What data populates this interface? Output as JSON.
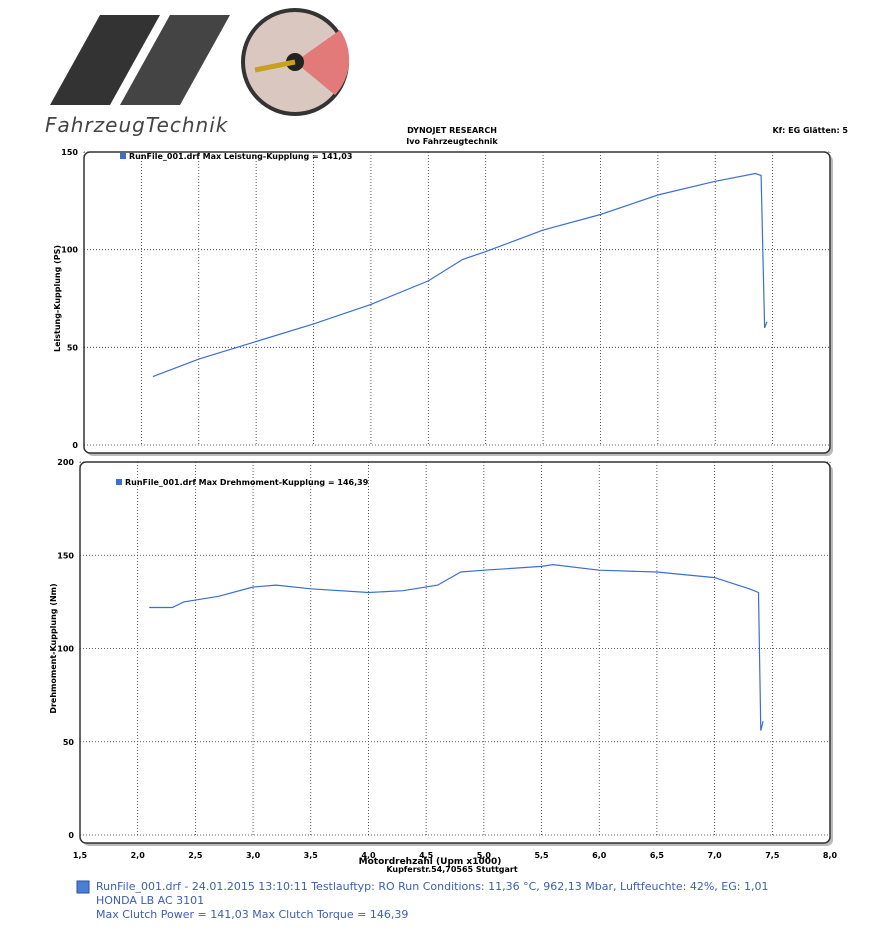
{
  "header": {
    "logo_text": "FahrzeugTechnik",
    "company": "DYNOJET RESEARCH",
    "shop": "Ivo Fahrzeugtechnik",
    "settings": "Kf: EG  Glätten: 5",
    "address": "Kupferstr.54,70565 Stuttgart"
  },
  "chart_data": [
    {
      "type": "line",
      "y_label": "Leistung-Kupplung (PS)",
      "xlim": [
        1.5,
        8.0
      ],
      "ylim": [
        0,
        150
      ],
      "yticks": [
        0,
        50,
        100,
        150
      ],
      "grid": true,
      "x": [
        2.1,
        2.5,
        3.0,
        3.5,
        4.0,
        4.5,
        4.8,
        5.0,
        5.5,
        6.0,
        6.3,
        6.5,
        7.0,
        7.35,
        7.4,
        7.43,
        7.45
      ],
      "series": [
        {
          "name": "RunFile_001.drf Max Leistung-Kupplung = 141,03",
          "color": "#3a6fd0",
          "values": [
            35,
            44,
            53,
            62,
            72,
            84,
            95,
            99,
            110,
            118,
            124,
            128,
            135,
            139,
            138,
            60,
            63
          ]
        }
      ]
    },
    {
      "type": "line",
      "y_label": "Drehmoment-Kupplung (Nm)",
      "x_label": "Motordrehzahl (Upm x1000)",
      "xlim": [
        1.5,
        8.0
      ],
      "ylim": [
        0,
        200
      ],
      "yticks": [
        0,
        50,
        100,
        150,
        200
      ],
      "grid": true,
      "xticks": [
        {
          "value": 1.5,
          "label": "1,5"
        },
        {
          "value": 2.0,
          "label": "2,0"
        },
        {
          "value": 2.5,
          "label": "2,5"
        },
        {
          "value": 3.0,
          "label": "3,0"
        },
        {
          "value": 3.5,
          "label": "3,5"
        },
        {
          "value": 4.0,
          "label": "4,0"
        },
        {
          "value": 4.5,
          "label": "4,5"
        },
        {
          "value": 5.0,
          "label": "5,0"
        },
        {
          "value": 5.5,
          "label": "5,5"
        },
        {
          "value": 6.0,
          "label": "6,0"
        },
        {
          "value": 6.5,
          "label": "6,5"
        },
        {
          "value": 7.0,
          "label": "7,0"
        },
        {
          "value": 7.5,
          "label": "7,5"
        },
        {
          "value": 8.0,
          "label": "8,0"
        }
      ],
      "x": [
        2.1,
        2.3,
        2.4,
        2.7,
        3.0,
        3.2,
        3.5,
        4.0,
        4.3,
        4.6,
        4.8,
        5.0,
        5.5,
        5.6,
        6.0,
        6.5,
        7.0,
        7.3,
        7.38,
        7.4,
        7.42
      ],
      "series": [
        {
          "name": "RunFile_001.drf Max Drehmoment-Kupplung = 146,39",
          "color": "#3a6fd0",
          "values": [
            122,
            122,
            125,
            128,
            133,
            134,
            132,
            130,
            131,
            134,
            141,
            142,
            144,
            145,
            142,
            141,
            138,
            132,
            130,
            56,
            61
          ]
        }
      ]
    }
  ],
  "footer": {
    "lines": [
      "RunFile_001.drf - 24.01.2015 13:10:11  Testlauftyp: RO  Run Conditions: 11,36 °C, 962,13 Mbar,  Luftfeuchte: 42%, EG: 1,01",
      "HONDA LB AC 3101",
      "Max Clutch Power = 141,03  Max Clutch Torque = 146,39"
    ]
  }
}
